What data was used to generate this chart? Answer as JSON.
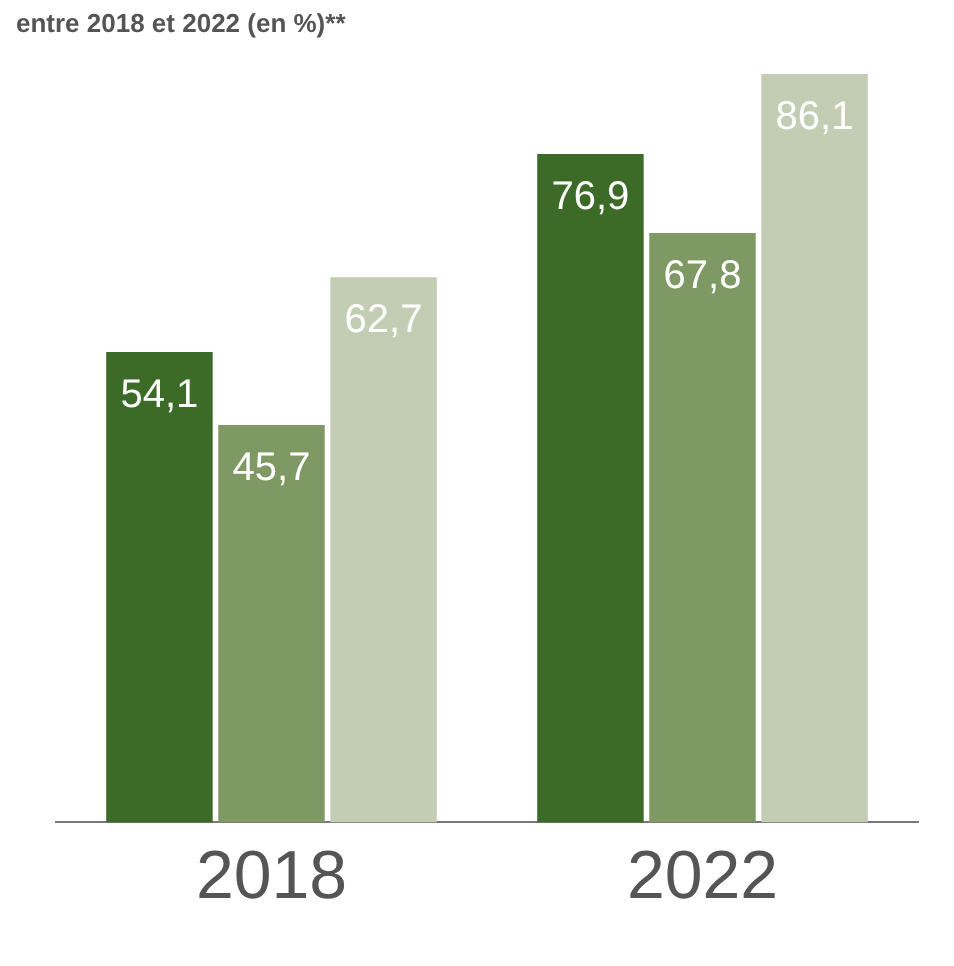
{
  "chart_data": {
    "type": "bar",
    "title": "entre 2018 et 2022 (en %)**",
    "categories": [
      "2018",
      "2022"
    ],
    "series": [
      {
        "color": "#3b6b27",
        "values": [
          54.1,
          76.9
        ],
        "value_labels": [
          "54,1",
          "76,9"
        ]
      },
      {
        "color": "#7e9963",
        "values": [
          45.7,
          67.8
        ],
        "value_labels": [
          "45,7",
          "67,8"
        ]
      },
      {
        "color": "#c3cdb3",
        "values": [
          62.7,
          86.1
        ],
        "value_labels": [
          "62,7",
          "86,1"
        ]
      }
    ],
    "grid": false,
    "legend": false
  }
}
